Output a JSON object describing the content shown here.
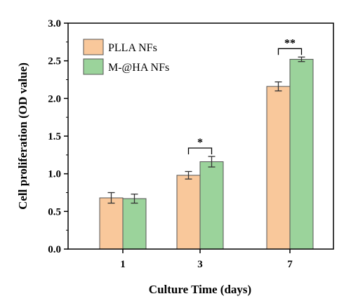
{
  "chart_data": {
    "type": "bar",
    "title": "",
    "xlabel": "Culture Time (days)",
    "ylabel": "Cell proliferation (OD value)",
    "categories": [
      "1",
      "3",
      "7"
    ],
    "ylim": [
      0,
      3.0
    ],
    "yticks": [
      "0.0",
      "0.5",
      "1.0",
      "1.5",
      "2.0",
      "2.5",
      "3.0"
    ],
    "grid": false,
    "legend_position": "top-left",
    "series": [
      {
        "name": "PLLA NFs",
        "color": "#F9C89B",
        "values": [
          0.68,
          0.98,
          2.16
        ],
        "errors": [
          0.07,
          0.05,
          0.06
        ]
      },
      {
        "name": "M-@HA NFs",
        "color": "#9BD39B",
        "values": [
          0.67,
          1.16,
          2.52
        ],
        "errors": [
          0.06,
          0.07,
          0.03
        ]
      }
    ],
    "annotations": [
      {
        "category": "3",
        "label": "*"
      },
      {
        "category": "7",
        "label": "**"
      }
    ]
  }
}
